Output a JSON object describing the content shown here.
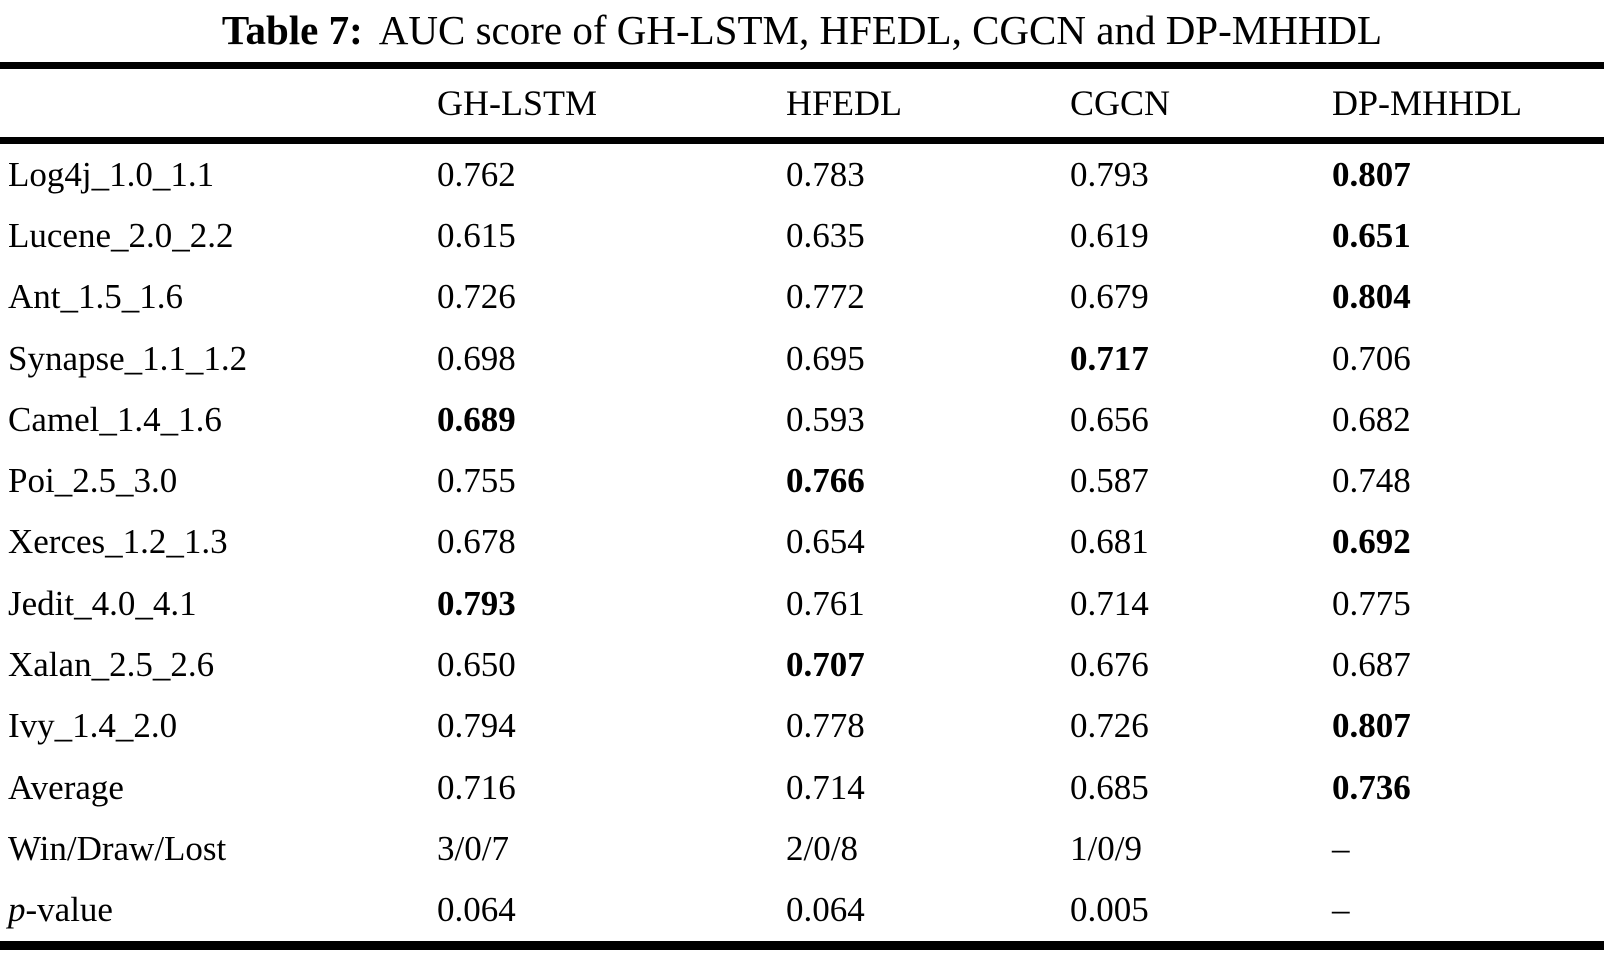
{
  "caption": {
    "label": "Table 7:",
    "text": "AUC score of GH-LSTM, HFEDL, CGCN and DP-MHHDL"
  },
  "chart_data": {
    "type": "table",
    "title": "Table 7: AUC score of GH-LSTM, HFEDL, CGCN and DP-MHHDL",
    "columns": [
      "GH-LSTM",
      "HFEDL",
      "CGCN",
      "DP-MHHDL"
    ],
    "rows": [
      {
        "label": "Log4j_1.0_1.1",
        "values": [
          "0.762",
          "0.783",
          "0.793",
          "0.807"
        ],
        "bold_col": 3
      },
      {
        "label": "Lucene_2.0_2.2",
        "values": [
          "0.615",
          "0.635",
          "0.619",
          "0.651"
        ],
        "bold_col": 3
      },
      {
        "label": "Ant_1.5_1.6",
        "values": [
          "0.726",
          "0.772",
          "0.679",
          "0.804"
        ],
        "bold_col": 3
      },
      {
        "label": "Synapse_1.1_1.2",
        "values": [
          "0.698",
          "0.695",
          "0.717",
          "0.706"
        ],
        "bold_col": 2
      },
      {
        "label": "Camel_1.4_1.6",
        "values": [
          "0.689",
          "0.593",
          "0.656",
          "0.682"
        ],
        "bold_col": 0
      },
      {
        "label": "Poi_2.5_3.0",
        "values": [
          "0.755",
          "0.766",
          "0.587",
          "0.748"
        ],
        "bold_col": 1
      },
      {
        "label": "Xerces_1.2_1.3",
        "values": [
          "0.678",
          "0.654",
          "0.681",
          "0.692"
        ],
        "bold_col": 3
      },
      {
        "label": "Jedit_4.0_4.1",
        "values": [
          "0.793",
          "0.761",
          "0.714",
          "0.775"
        ],
        "bold_col": 0
      },
      {
        "label": "Xalan_2.5_2.6",
        "values": [
          "0.650",
          "0.707",
          "0.676",
          "0.687"
        ],
        "bold_col": 1
      },
      {
        "label": "Ivy_1.4_2.0",
        "values": [
          "0.794",
          "0.778",
          "0.726",
          "0.807"
        ],
        "bold_col": 3
      },
      {
        "label": "Average",
        "values": [
          "0.716",
          "0.714",
          "0.685",
          "0.736"
        ],
        "bold_col": 3
      },
      {
        "label": "Win/Draw/Lost",
        "values": [
          "3/0/7",
          "2/0/8",
          "1/0/9",
          "–"
        ],
        "bold_col": null
      },
      {
        "label": "p-value",
        "values": [
          "0.064",
          "0.064",
          "0.005",
          "–"
        ],
        "bold_col": null,
        "italic_first_char": true
      }
    ]
  }
}
